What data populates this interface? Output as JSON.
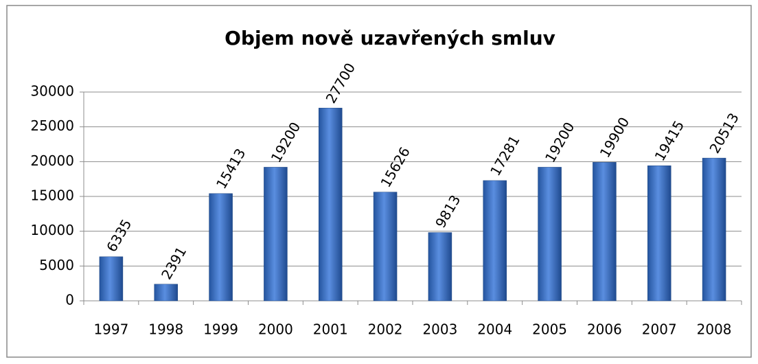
{
  "chart_data": {
    "type": "bar",
    "title": "Objem nově uzavřených smluv",
    "categories": [
      "1997",
      "1998",
      "1999",
      "2000",
      "2001",
      "2002",
      "2003",
      "2004",
      "2005",
      "2006",
      "2007",
      "2008"
    ],
    "values": [
      6335,
      2391,
      15413,
      19200,
      27700,
      15626,
      9813,
      17281,
      19200,
      19900,
      19415,
      20513
    ],
    "color": "#3a6fc4",
    "ylim": [
      0,
      30000
    ],
    "yticks": [
      0,
      5000,
      10000,
      15000,
      20000,
      25000,
      30000
    ],
    "grid": true
  }
}
